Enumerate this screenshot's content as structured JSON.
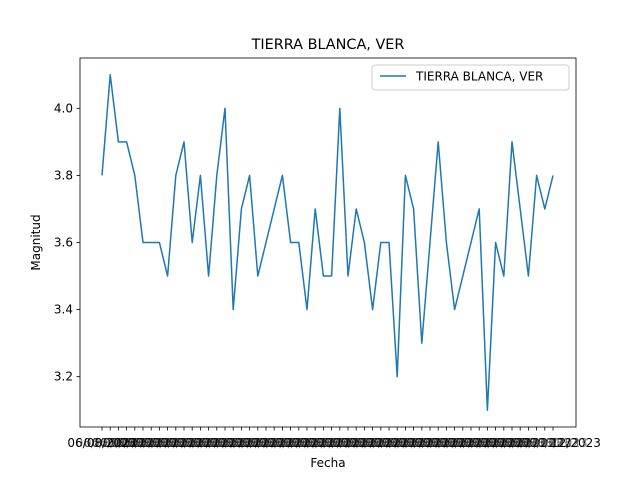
{
  "chart_data": {
    "type": "line",
    "title": "TIERRA BLANCA, VER",
    "xlabel": "Fecha",
    "ylabel": "Magnitud",
    "ylim": [
      3.05,
      4.15
    ],
    "yticks": [
      3.2,
      3.4,
      3.6,
      3.8,
      4.0
    ],
    "ytick_labels": [
      "3.2",
      "3.4",
      "3.6",
      "3.8",
      "4.0"
    ],
    "grid": false,
    "legend": {
      "entries": [
        "TIERRA BLANCA, VER"
      ],
      "position": "top-right"
    },
    "x_tick_labels_visible": [
      "06/08/2023",
      "12/2023"
    ],
    "series": [
      {
        "name": "TIERRA BLANCA, VER",
        "color": "#1f77b4",
        "values": [
          3.8,
          4.1,
          3.9,
          3.9,
          3.8,
          3.6,
          3.6,
          3.6,
          3.5,
          3.8,
          3.9,
          3.6,
          3.8,
          3.5,
          3.8,
          4.0,
          3.4,
          3.7,
          3.8,
          3.5,
          3.6,
          3.7,
          3.8,
          3.6,
          3.6,
          3.4,
          3.7,
          3.5,
          3.5,
          4.0,
          3.5,
          3.7,
          3.6,
          3.4,
          3.6,
          3.6,
          3.2,
          3.8,
          3.7,
          3.3,
          3.6,
          3.9,
          3.6,
          3.4,
          3.5,
          3.6,
          3.7,
          3.1,
          3.6,
          3.5,
          3.9,
          3.7,
          3.5,
          3.8,
          3.7,
          3.8
        ]
      }
    ]
  }
}
